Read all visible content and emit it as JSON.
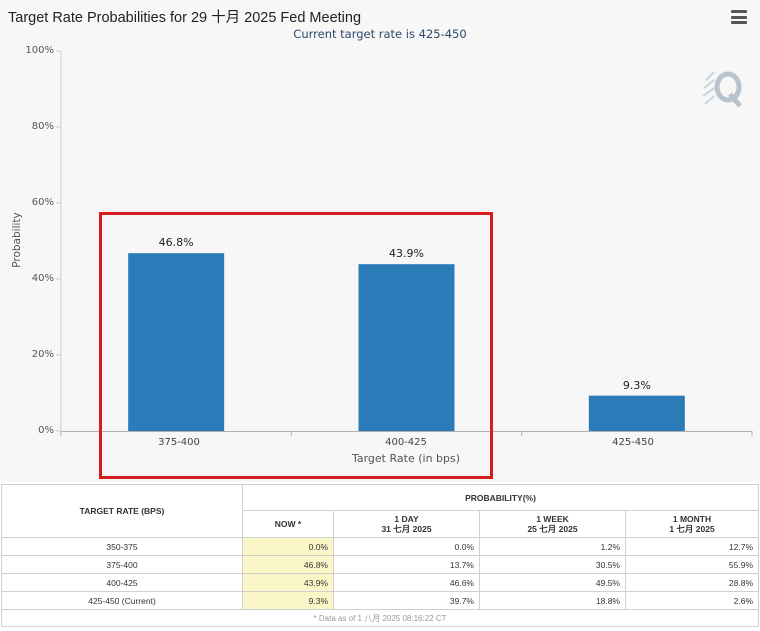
{
  "chart_data": {
    "type": "bar",
    "title": "Target Rate Probabilities for 29 十月 2025 Fed Meeting",
    "subtitle": "Current target rate is 425-450",
    "xlabel": "Target Rate (in bps)",
    "ylabel": "Probability",
    "ylim": [
      0,
      100
    ],
    "yticks": [
      "0%",
      "20%",
      "40%",
      "60%",
      "80%",
      "100%"
    ],
    "categories": [
      "375-400",
      "400-425",
      "425-450"
    ],
    "values": [
      46.8,
      43.9,
      9.3
    ],
    "data_labels": [
      "46.8%",
      "43.9%",
      "9.3%"
    ],
    "bar_color": "#2b7bb9",
    "grid": false,
    "highlight_color": "#d61d1d"
  },
  "table": {
    "header": {
      "target_rate": "TARGET RATE (BPS)",
      "probability": "PROBABILITY(%)",
      "now": "NOW *",
      "day_label": "1 DAY",
      "day_date": "31 七月 2025",
      "week_label": "1 WEEK",
      "week_date": "25 七月 2025",
      "month_label": "1 MONTH",
      "month_date": "1 七月 2025"
    },
    "rows": [
      {
        "rate": "350-375",
        "now": "0.0%",
        "day": "0.0%",
        "week": "1.2%",
        "month": "12.7%"
      },
      {
        "rate": "375-400",
        "now": "46.8%",
        "day": "13.7%",
        "week": "30.5%",
        "month": "55.9%"
      },
      {
        "rate": "400-425",
        "now": "43.9%",
        "day": "46.6%",
        "week": "49.5%",
        "month": "28.8%"
      },
      {
        "rate": "425-450 (Current)",
        "now": "9.3%",
        "day": "39.7%",
        "week": "18.8%",
        "month": "2.6%"
      }
    ],
    "footnote": "* Data as of 1 八月 2025 08:16:22 CT"
  },
  "icons": {
    "menu": "hamburger-menu-icon",
    "watermark": "q-logo-icon"
  }
}
